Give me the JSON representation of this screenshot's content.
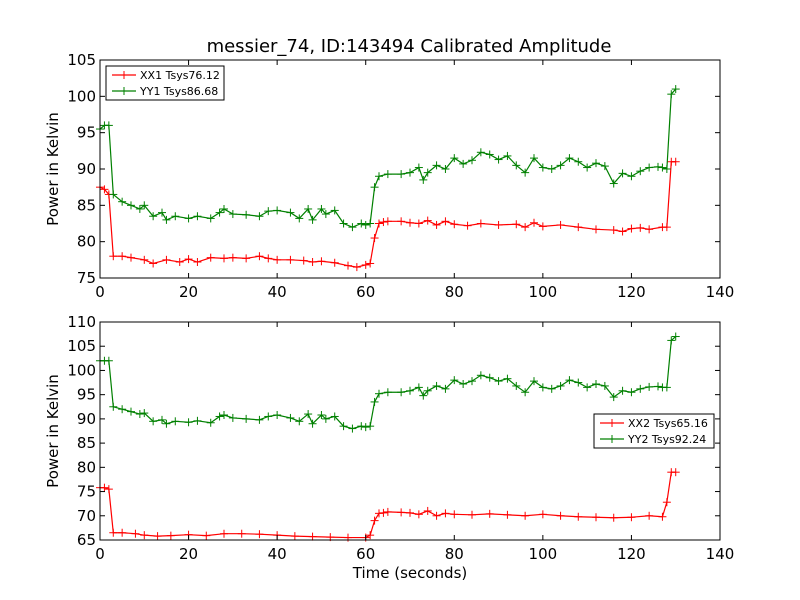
{
  "figure": {
    "title": "messier_74, ID:143494 Calibrated Amplitude"
  },
  "chart_data": [
    {
      "type": "line",
      "title": "messier_74, ID:143494 Calibrated Amplitude",
      "xlabel": "",
      "ylabel": "Power in Kelvin",
      "xlim": [
        0,
        140
      ],
      "ylim": [
        75,
        105
      ],
      "xticks": [
        0,
        20,
        40,
        60,
        80,
        100,
        120,
        140
      ],
      "yticks": [
        75,
        80,
        85,
        90,
        95,
        100,
        105
      ],
      "grid": false,
      "legend": "top-left",
      "series": [
        {
          "name": "XX1 Tsys76.12",
          "color": "#ff0000",
          "marker": "plus",
          "x": [
            0,
            1,
            2,
            3,
            5,
            7,
            10,
            12,
            15,
            18,
            20,
            22,
            25,
            28,
            30,
            33,
            36,
            38,
            40,
            43,
            46,
            48,
            50,
            53,
            56,
            58,
            60,
            61,
            62,
            63,
            64,
            65,
            68,
            70,
            72,
            74,
            76,
            78,
            80,
            83,
            86,
            90,
            94,
            96,
            98,
            100,
            104,
            108,
            112,
            116,
            118,
            120,
            122,
            124,
            127,
            128,
            129,
            130
          ],
          "y": [
            87.5,
            87.2,
            86.5,
            78.0,
            78.0,
            77.8,
            77.5,
            77.0,
            77.5,
            77.2,
            77.6,
            77.2,
            77.8,
            77.7,
            77.8,
            77.7,
            78.0,
            77.7,
            77.5,
            77.5,
            77.4,
            77.2,
            77.3,
            77.1,
            76.7,
            76.5,
            76.8,
            77.0,
            80.5,
            82.5,
            82.7,
            82.8,
            82.8,
            82.6,
            82.5,
            82.9,
            82.3,
            82.8,
            82.4,
            82.2,
            82.5,
            82.3,
            82.4,
            82.0,
            82.6,
            82.1,
            82.3,
            82.0,
            81.7,
            81.6,
            81.4,
            81.8,
            81.9,
            81.7,
            82.0,
            82.0,
            91.0,
            91.0
          ]
        },
        {
          "name": "YY1 Tsys86.68",
          "color": "#008000",
          "marker": "plus",
          "x": [
            0,
            1,
            2,
            3,
            5,
            7,
            9,
            10,
            12,
            14,
            15,
            17,
            20,
            22,
            25,
            27,
            28,
            30,
            33,
            36,
            38,
            40,
            43,
            45,
            47,
            48,
            50,
            51,
            53,
            55,
            57,
            59,
            60,
            61,
            62,
            63,
            65,
            68,
            70,
            72,
            73,
            74,
            76,
            78,
            80,
            82,
            84,
            86,
            88,
            90,
            92,
            94,
            96,
            98,
            100,
            102,
            104,
            106,
            108,
            110,
            112,
            114,
            116,
            118,
            120,
            122,
            124,
            126,
            127,
            128,
            129,
            130
          ],
          "y": [
            95.5,
            96.0,
            96.0,
            86.5,
            85.5,
            85.0,
            84.5,
            85.0,
            83.5,
            84.0,
            83.0,
            83.5,
            83.2,
            83.5,
            83.2,
            84.0,
            84.5,
            83.8,
            83.7,
            83.5,
            84.2,
            84.3,
            84.0,
            83.2,
            84.5,
            83.0,
            84.5,
            83.8,
            84.3,
            82.5,
            82.0,
            82.5,
            82.3,
            82.5,
            87.5,
            89.0,
            89.3,
            89.3,
            89.5,
            90.2,
            88.5,
            89.5,
            90.5,
            90.0,
            91.5,
            90.7,
            91.2,
            92.3,
            92.0,
            91.3,
            91.8,
            90.5,
            89.5,
            91.5,
            90.2,
            90.0,
            90.5,
            91.5,
            91.0,
            90.2,
            90.8,
            90.4,
            88.0,
            89.4,
            89.0,
            89.7,
            90.2,
            90.3,
            90.2,
            90.0,
            100.3,
            101.0
          ]
        }
      ]
    },
    {
      "type": "line",
      "title": "",
      "xlabel": "Time (seconds)",
      "ylabel": "Power in Kelvin",
      "xlim": [
        0,
        140
      ],
      "ylim": [
        65,
        110
      ],
      "xticks": [
        0,
        20,
        40,
        60,
        80,
        100,
        120,
        140
      ],
      "yticks": [
        65,
        70,
        75,
        80,
        85,
        90,
        95,
        100,
        105,
        110
      ],
      "grid": false,
      "legend": "right",
      "series": [
        {
          "name": "XX2 Tsys65.16",
          "color": "#ff0000",
          "marker": "plus",
          "x": [
            0,
            1,
            2,
            3,
            5,
            8,
            10,
            13,
            16,
            20,
            24,
            28,
            32,
            36,
            40,
            44,
            48,
            52,
            56,
            60,
            61,
            62,
            63,
            64,
            65,
            68,
            70,
            72,
            74,
            76,
            78,
            80,
            84,
            88,
            92,
            96,
            100,
            104,
            108,
            112,
            116,
            120,
            124,
            127,
            128,
            129,
            130
          ],
          "y": [
            75.8,
            75.8,
            75.5,
            66.5,
            66.5,
            66.3,
            66.0,
            65.8,
            65.9,
            66.1,
            65.9,
            66.3,
            66.3,
            66.2,
            66.0,
            65.8,
            65.7,
            65.6,
            65.5,
            65.5,
            66.0,
            69.0,
            70.5,
            70.6,
            70.8,
            70.7,
            70.6,
            70.3,
            71.0,
            70.0,
            70.5,
            70.3,
            70.2,
            70.4,
            70.2,
            70.0,
            70.3,
            70.0,
            69.8,
            69.7,
            69.6,
            69.7,
            70.0,
            69.8,
            72.8,
            79.0,
            79.0
          ]
        },
        {
          "name": "YY2 Tsys92.24",
          "color": "#008000",
          "marker": "plus",
          "x": [
            0,
            1,
            2,
            3,
            5,
            7,
            9,
            10,
            12,
            14,
            15,
            17,
            20,
            22,
            25,
            27,
            28,
            30,
            33,
            36,
            38,
            40,
            43,
            45,
            47,
            48,
            50,
            51,
            53,
            55,
            57,
            59,
            60,
            61,
            62,
            63,
            65,
            68,
            70,
            72,
            73,
            74,
            76,
            78,
            80,
            82,
            84,
            86,
            88,
            90,
            92,
            94,
            96,
            98,
            100,
            102,
            104,
            106,
            108,
            110,
            112,
            114,
            116,
            118,
            120,
            122,
            124,
            126,
            127,
            128,
            129,
            130
          ],
          "y": [
            102.0,
            102.0,
            102.0,
            92.5,
            92.0,
            91.5,
            91.0,
            91.2,
            89.5,
            89.8,
            89.0,
            89.5,
            89.3,
            89.6,
            89.2,
            90.5,
            90.8,
            90.2,
            90.0,
            89.8,
            90.5,
            90.8,
            90.2,
            89.5,
            91.0,
            89.0,
            90.8,
            90.0,
            90.5,
            88.5,
            88.0,
            88.5,
            88.3,
            88.5,
            93.5,
            95.2,
            95.5,
            95.5,
            95.8,
            96.5,
            94.8,
            95.8,
            96.8,
            96.2,
            98.0,
            97.2,
            97.8,
            99.0,
            98.5,
            97.8,
            98.3,
            96.8,
            95.5,
            97.8,
            96.5,
            96.2,
            96.8,
            98.0,
            97.5,
            96.5,
            97.2,
            96.8,
            94.5,
            95.8,
            95.5,
            96.2,
            96.6,
            96.7,
            96.5,
            96.5,
            106.2,
            107.0
          ]
        }
      ]
    }
  ]
}
